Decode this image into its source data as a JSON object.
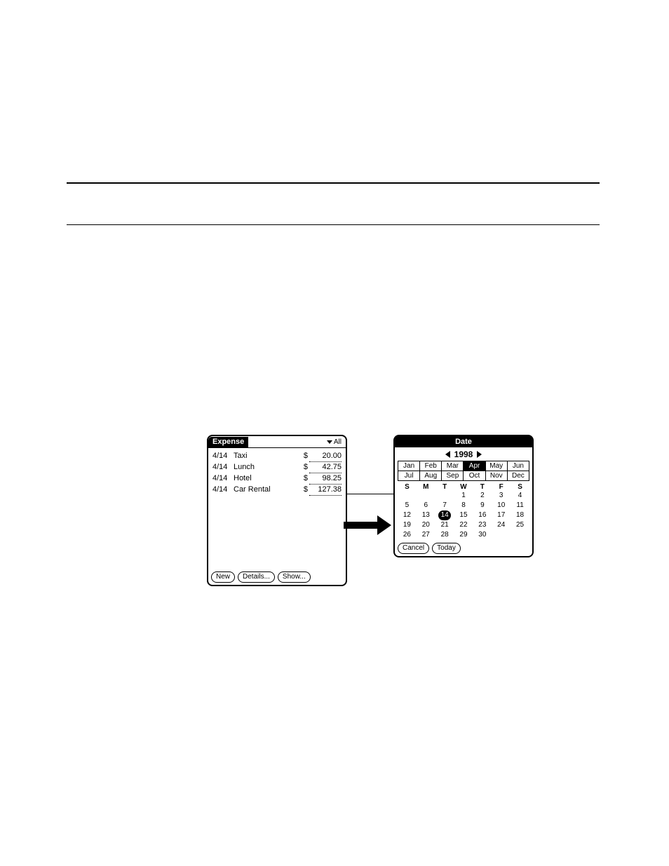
{
  "colors": {
    "ink": "#000000",
    "paper": "#ffffff"
  },
  "expense": {
    "title": "Expense",
    "category": "All",
    "rows": [
      {
        "date": "4/14",
        "type": "Taxi",
        "currency": "$",
        "amount": "20.00"
      },
      {
        "date": "4/14",
        "type": "Lunch",
        "currency": "$",
        "amount": "42.75"
      },
      {
        "date": "4/14",
        "type": "Hotel",
        "currency": "$",
        "amount": "98.25"
      },
      {
        "date": "4/14",
        "type": "Car Rental",
        "currency": "$",
        "amount": "127.38"
      }
    ],
    "buttons": {
      "new": "New",
      "details": "Details...",
      "show": "Show..."
    },
    "panel_height_blank_rows": 7
  },
  "date_picker": {
    "title": "Date",
    "year": "1998",
    "months_row1": [
      "Jan",
      "Feb",
      "Mar",
      "Apr",
      "May",
      "Jun"
    ],
    "months_row2": [
      "Jul",
      "Aug",
      "Sep",
      "Oct",
      "Nov",
      "Dec"
    ],
    "selected_month_index": 3,
    "dow": [
      "S",
      "M",
      "T",
      "W",
      "T",
      "F",
      "S"
    ],
    "leading_blanks": 3,
    "days_in_month": 30,
    "selected_day": 14,
    "buttons": {
      "cancel": "Cancel",
      "today": "Today"
    }
  }
}
